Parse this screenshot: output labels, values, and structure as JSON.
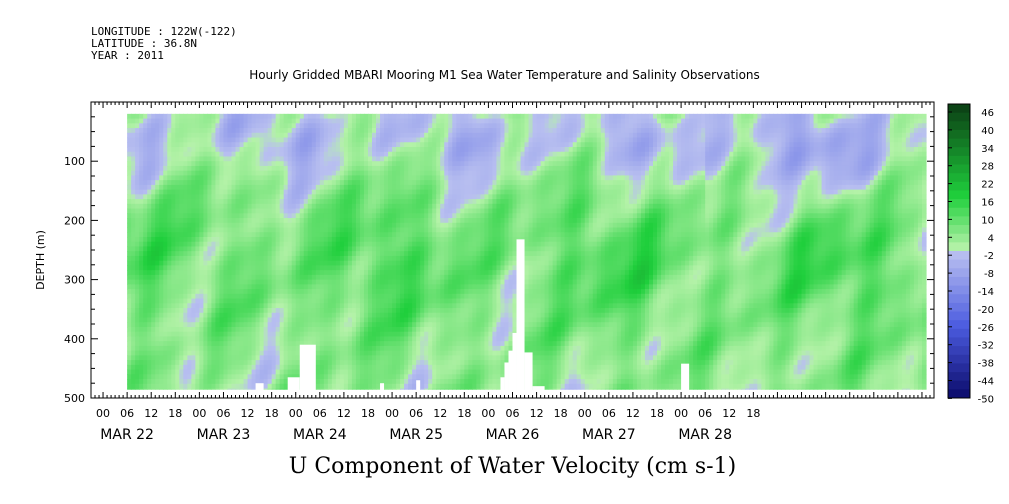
{
  "header": {
    "longitude": "LONGITUDE : 122W(-122)",
    "latitude": "LATITUDE : 36.8N",
    "year": "YEAR : 2011"
  },
  "chart_data": {
    "type": "heatmap",
    "title": "Hourly Gridded MBARI Mooring M1 Sea Water Temperature and Salinity Observations",
    "xlabel": "U Component of Water Velocity (cm s-1)",
    "ylabel": "DEPTH (m)",
    "y_range_m": [
      0,
      500
    ],
    "y_inverted": true,
    "y_ticks": [
      100,
      200,
      300,
      400,
      500
    ],
    "x_range_hours": [
      -3,
      207
    ],
    "x_hour_labels": [
      "00",
      "06",
      "12",
      "18",
      "00",
      "06",
      "12",
      "18",
      "00",
      "06",
      "12",
      "18",
      "00",
      "06",
      "12",
      "18",
      "00",
      "06",
      "12",
      "18",
      "00",
      "06",
      "12",
      "18",
      "00",
      "06",
      "12",
      "18"
    ],
    "x_day_labels": [
      "MAR 22",
      "MAR 23",
      "MAR 24",
      "MAR 25",
      "MAR 26",
      "MAR 27",
      "MAR 28"
    ],
    "data_extent": {
      "start_hour": 6,
      "end_hour": 205,
      "top_depth_m": 20,
      "bottom_depth_m": 485
    },
    "colorbar": {
      "labels": [
        "46",
        "40",
        "34",
        "28",
        "22",
        "16",
        "10",
        "4",
        "-2",
        "-8",
        "-14",
        "-20",
        "-26",
        "-32",
        "-38",
        "-44",
        "-50"
      ],
      "min": -50,
      "max": 52
    },
    "missing_regions": [
      {
        "hour_from": 38,
        "hour_to": 40,
        "depth_from": 475,
        "depth_to": 500
      },
      {
        "hour_from": 46,
        "hour_to": 49,
        "depth_from": 465,
        "depth_to": 500
      },
      {
        "hour_from": 49,
        "hour_to": 53,
        "depth_from": 410,
        "depth_to": 500
      },
      {
        "hour_from": 69,
        "hour_to": 70,
        "depth_from": 475,
        "depth_to": 500
      },
      {
        "hour_from": 78,
        "hour_to": 79,
        "depth_from": 470,
        "depth_to": 500
      },
      {
        "hour_from": 99,
        "hour_to": 100,
        "depth_from": 465,
        "depth_to": 500
      },
      {
        "hour_from": 100,
        "hour_to": 101,
        "depth_from": 440,
        "depth_to": 500
      },
      {
        "hour_from": 101,
        "hour_to": 102,
        "depth_from": 420,
        "depth_to": 500
      },
      {
        "hour_from": 102,
        "hour_to": 103,
        "depth_from": 390,
        "depth_to": 500
      },
      {
        "hour_from": 103,
        "hour_to": 105,
        "depth_from": 232,
        "depth_to": 500
      },
      {
        "hour_from": 105,
        "hour_to": 107,
        "depth_from": 423,
        "depth_to": 500
      },
      {
        "hour_from": 107,
        "hour_to": 110,
        "depth_from": 480,
        "depth_to": 500
      },
      {
        "hour_from": 144,
        "hour_to": 146,
        "depth_from": 442,
        "depth_to": 500
      }
    ]
  },
  "colors": {
    "positive_dark": "#0b3d14",
    "positive_mid": "#1fcf3c",
    "positive_light": "#b4f2a8",
    "negative_light": "#b8bff0",
    "negative_mid": "#4c5ce0",
    "negative_dark": "#0a0a6a"
  }
}
